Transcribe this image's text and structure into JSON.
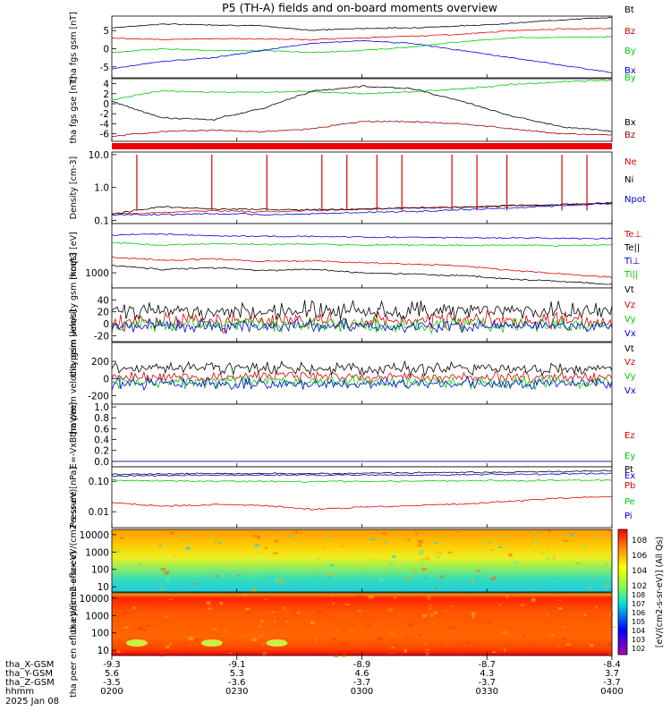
{
  "title": "P5 (TH-A) fields and on-board moments overview",
  "footer": {
    "row_labels": [
      "tha_X-GSM",
      "tha_Y-GSM",
      "tha_Z-GSM",
      "hhmm",
      "2025 Jan 08"
    ],
    "columns": [
      {
        "x": "-9.3",
        "y": "5.6",
        "z": "-3.5",
        "hhmm": "0200"
      },
      {
        "x": "-9.1",
        "y": "5.3",
        "z": "-3.6",
        "hhmm": "0230"
      },
      {
        "x": "-8.9",
        "y": "4.6",
        "z": "-3.7",
        "hhmm": "0300"
      },
      {
        "x": "-8.7",
        "y": "4.3",
        "z": "-3.7",
        "hhmm": "0330"
      },
      {
        "x": "-8.4",
        "y": "3.7",
        "z": "-3.7",
        "hhmm": "0400"
      }
    ]
  },
  "colorbar": {
    "label": "[eV/(cm2-s-sr-eV)] (All Qs)",
    "upper_ticks": [
      "10^8",
      "10^6",
      "10^4",
      "10^2"
    ],
    "lower_ticks": [
      "10^8",
      "10^7",
      "10^6",
      "10^5",
      "10^4",
      "10^3",
      "10^2"
    ]
  },
  "chart_data": [
    {
      "type": "line",
      "id": "fgs",
      "ylabel": "tha fgs gsm [nT]",
      "ylim": [
        -8,
        9
      ],
      "yticks": [
        "5",
        "0",
        "-5"
      ],
      "series": [
        {
          "name": "Bt",
          "color": "#000000",
          "x": [
            0,
            0.1,
            0.2,
            0.3,
            0.4,
            0.5,
            0.6,
            0.7,
            0.8,
            0.9,
            1
          ],
          "values": [
            5.8,
            6.8,
            6.6,
            6.3,
            5.1,
            5.6,
            5.8,
            6.3,
            7.0,
            8.0,
            8.6
          ]
        },
        {
          "name": "Bz",
          "color": "#dd0000",
          "x": [
            0,
            0.1,
            0.2,
            0.3,
            0.4,
            0.5,
            0.6,
            0.7,
            0.8,
            0.9,
            1
          ],
          "values": [
            3.0,
            2.5,
            2.8,
            2.7,
            2.5,
            3.0,
            3.5,
            4.0,
            5.0,
            5.5,
            5.6
          ]
        },
        {
          "name": "By",
          "color": "#00cc00",
          "x": [
            0,
            0.1,
            0.2,
            0.3,
            0.4,
            0.5,
            0.6,
            0.7,
            0.8,
            0.9,
            1
          ],
          "values": [
            -1.0,
            0.0,
            -0.5,
            -0.5,
            -1.0,
            -0.5,
            0.5,
            2.0,
            3.0,
            3.2,
            3.3
          ]
        },
        {
          "name": "Bx",
          "color": "#0000dd",
          "x": [
            0,
            0.1,
            0.2,
            0.3,
            0.4,
            0.5,
            0.6,
            0.7,
            0.8,
            0.9,
            1
          ],
          "values": [
            -5.5,
            -3.5,
            -2.5,
            -0.5,
            1.5,
            2.2,
            1.5,
            -0.5,
            -2.5,
            -4.5,
            -6.6
          ]
        }
      ]
    },
    {
      "type": "line",
      "id": "fgs_gse",
      "ylabel": "tha fgs gse [nT]",
      "ylim": [
        -7.5,
        5
      ],
      "yticks": [
        "4",
        "2",
        "0",
        "-2",
        "-4",
        "-6"
      ],
      "series": [
        {
          "name": "By",
          "color": "#00cc00",
          "x": [
            0,
            0.1,
            0.2,
            0.3,
            0.4,
            0.5,
            0.6,
            0.7,
            0.8,
            0.9,
            1
          ],
          "values": [
            0.8,
            2.6,
            2.3,
            2.3,
            2.4,
            2.0,
            2.4,
            3.0,
            3.8,
            4.4,
            4.7
          ]
        },
        {
          "name": "Bx",
          "color": "#000000",
          "x": [
            0,
            0.1,
            0.2,
            0.3,
            0.4,
            0.5,
            0.6,
            0.7,
            0.8,
            0.9,
            1
          ],
          "values": [
            0.5,
            -2.8,
            -3.2,
            -1.0,
            2.5,
            3.5,
            3.0,
            0.5,
            -2.5,
            -4.6,
            -5.5
          ]
        },
        {
          "name": "Bz",
          "color": "#990000",
          "x": [
            0,
            0.1,
            0.2,
            0.3,
            0.4,
            0.5,
            0.6,
            0.7,
            0.8,
            0.9,
            1
          ],
          "values": [
            -6.5,
            -5.5,
            -5.3,
            -5.6,
            -5.0,
            -3.5,
            -3.6,
            -4.0,
            -5.0,
            -6.0,
            -6.2
          ]
        }
      ]
    },
    {
      "type": "line",
      "id": "density",
      "ylabel": "Density [cm-3]",
      "yscale": "log",
      "ylim": [
        0.08,
        12
      ],
      "yticks": [
        "10.0",
        "1.0",
        "0.1"
      ],
      "series": [
        {
          "name": "Ne",
          "color": "#dd0000",
          "x": [
            0,
            0.1,
            0.2,
            0.3,
            0.4,
            0.5,
            0.6,
            0.7,
            0.8,
            0.9,
            1
          ],
          "values": [
            0.16,
            0.17,
            0.2,
            0.18,
            0.2,
            0.22,
            0.24,
            0.26,
            0.28,
            0.3,
            0.35
          ]
        },
        {
          "name": "Ni",
          "color": "#000000",
          "x": [
            0,
            0.1,
            0.2,
            0.3,
            0.4,
            0.5,
            0.6,
            0.7,
            0.8,
            0.9,
            1
          ],
          "values": [
            0.15,
            0.26,
            0.22,
            0.22,
            0.21,
            0.22,
            0.24,
            0.25,
            0.28,
            0.3,
            0.33
          ]
        },
        {
          "name": "Npot",
          "color": "#0000dd",
          "x": [
            0,
            0.1,
            0.2,
            0.3,
            0.4,
            0.5,
            0.6,
            0.7,
            0.8,
            0.9,
            1
          ],
          "values": [
            0.15,
            0.15,
            0.16,
            0.15,
            0.16,
            0.17,
            0.19,
            0.21,
            0.24,
            0.28,
            0.33
          ]
        }
      ]
    },
    {
      "type": "line",
      "id": "temp",
      "ylabel": "moqt3 [eV]",
      "yscale": "log",
      "ylim": [
        300,
        50000
      ],
      "yticks": [
        "1000"
      ],
      "series": [
        {
          "name": "Te⊥",
          "color": "#dd0000",
          "x": [
            0,
            0.1,
            0.2,
            0.3,
            0.4,
            0.5,
            0.6,
            0.7,
            0.8,
            0.9,
            1
          ],
          "values": [
            3500,
            2700,
            3000,
            2500,
            2600,
            2200,
            2000,
            1700,
            1200,
            900,
            700
          ]
        },
        {
          "name": "Te||",
          "color": "#000000",
          "x": [
            0,
            0.1,
            0.2,
            0.3,
            0.4,
            0.5,
            0.6,
            0.7,
            0.8,
            0.9,
            1
          ],
          "values": [
            1800,
            1300,
            1500,
            1200,
            1300,
            1000,
            900,
            800,
            600,
            500,
            400
          ]
        },
        {
          "name": "Ti⊥",
          "color": "#0000dd",
          "x": [
            0,
            0.1,
            0.2,
            0.3,
            0.4,
            0.5,
            0.6,
            0.7,
            0.8,
            0.9,
            1
          ],
          "values": [
            20000,
            22000,
            19000,
            18000,
            18000,
            17000,
            17000,
            16000,
            16000,
            15500,
            15000
          ]
        },
        {
          "name": "Ti||",
          "color": "#00cc00",
          "x": [
            0,
            0.1,
            0.2,
            0.3,
            0.4,
            0.5,
            0.6,
            0.7,
            0.8,
            0.9,
            1
          ],
          "values": [
            11000,
            9000,
            10000,
            9500,
            9800,
            9000,
            9200,
            8800,
            9000,
            8700,
            9200
          ]
        }
      ]
    },
    {
      "type": "line",
      "id": "peim_v",
      "ylabel": "tha peim velocity gsm [km/s]",
      "ylim": [
        -30,
        60
      ],
      "yticks": [
        "40",
        "20",
        "0",
        "-20"
      ],
      "series": [
        {
          "name": "Vt",
          "color": "#000000"
        },
        {
          "name": "Vz",
          "color": "#dd0000"
        },
        {
          "name": "Vy",
          "color": "#00cc00"
        },
        {
          "name": "Vx",
          "color": "#0000dd"
        }
      ]
    },
    {
      "type": "line",
      "id": "peem_v",
      "ylabel": "tha peem velocity gsm [km/s]",
      "ylim": [
        -300,
        420
      ],
      "yticks": [
        "200",
        "0",
        "-200"
      ],
      "series": [
        {
          "name": "Vt",
          "color": "#000000"
        },
        {
          "name": "Vz",
          "color": "#dd0000"
        },
        {
          "name": "Vy",
          "color": "#00cc00"
        },
        {
          "name": "Vx",
          "color": "#0000dd"
        }
      ]
    },
    {
      "type": "line",
      "id": "efield",
      "ylabel": "E=-VxB [mV/m]",
      "ylim": [
        -0.1,
        1.05
      ],
      "yticks": [
        "1.0",
        "0.8",
        "0.6",
        "0.4",
        "0.2",
        "0.0"
      ],
      "series": [
        {
          "name": "Ez",
          "color": "#dd0000"
        },
        {
          "name": "Ey",
          "color": "#00cc00"
        },
        {
          "name": "Ex",
          "color": "#0000dd"
        }
      ]
    },
    {
      "type": "line",
      "id": "pressure",
      "ylabel": "Pressure [nPa]",
      "yscale": "log",
      "ylim": [
        0.003,
        0.3
      ],
      "yticks": [
        "0.10",
        "0.01"
      ],
      "series": [
        {
          "name": "Pt",
          "color": "#000000",
          "x": [
            0,
            0.2,
            0.4,
            0.6,
            0.8,
            1
          ],
          "values": [
            0.17,
            0.18,
            0.18,
            0.19,
            0.2,
            0.22
          ]
        },
        {
          "name": "Pb",
          "color": "#dd0000",
          "x": [
            0,
            0.1,
            0.2,
            0.3,
            0.4,
            0.5,
            0.6,
            0.7,
            0.8,
            0.9,
            1
          ],
          "values": [
            0.02,
            0.015,
            0.017,
            0.016,
            0.012,
            0.014,
            0.016,
            0.018,
            0.022,
            0.028,
            0.032
          ]
        },
        {
          "name": "Pe",
          "color": "#00cc00",
          "x": [
            0,
            0.2,
            0.4,
            0.6,
            0.8,
            1
          ],
          "values": [
            0.11,
            0.1,
            0.1,
            0.1,
            0.105,
            0.11
          ]
        },
        {
          "name": "Pi",
          "color": "#0000dd",
          "x": [
            0,
            0.2,
            0.4,
            0.6,
            0.8,
            1
          ],
          "values": [
            0.15,
            0.16,
            0.16,
            0.16,
            0.17,
            0.18
          ]
        }
      ]
    },
    {
      "type": "heatmap",
      "id": "peir",
      "ylabel": "tha peir en eflux eV/(cm2-s-sr-eV)",
      "yscale": "log",
      "ylim": [
        5,
        20000
      ],
      "yticks": [
        "10000",
        "1000",
        "100",
        "10"
      ]
    },
    {
      "type": "heatmap",
      "id": "peer",
      "ylabel": "tha peer en eflux eV/(cm2-s-sr-eV)",
      "yscale": "log",
      "ylim": [
        5,
        20000
      ],
      "yticks": [
        "10000",
        "1000",
        "100",
        "10"
      ]
    }
  ]
}
